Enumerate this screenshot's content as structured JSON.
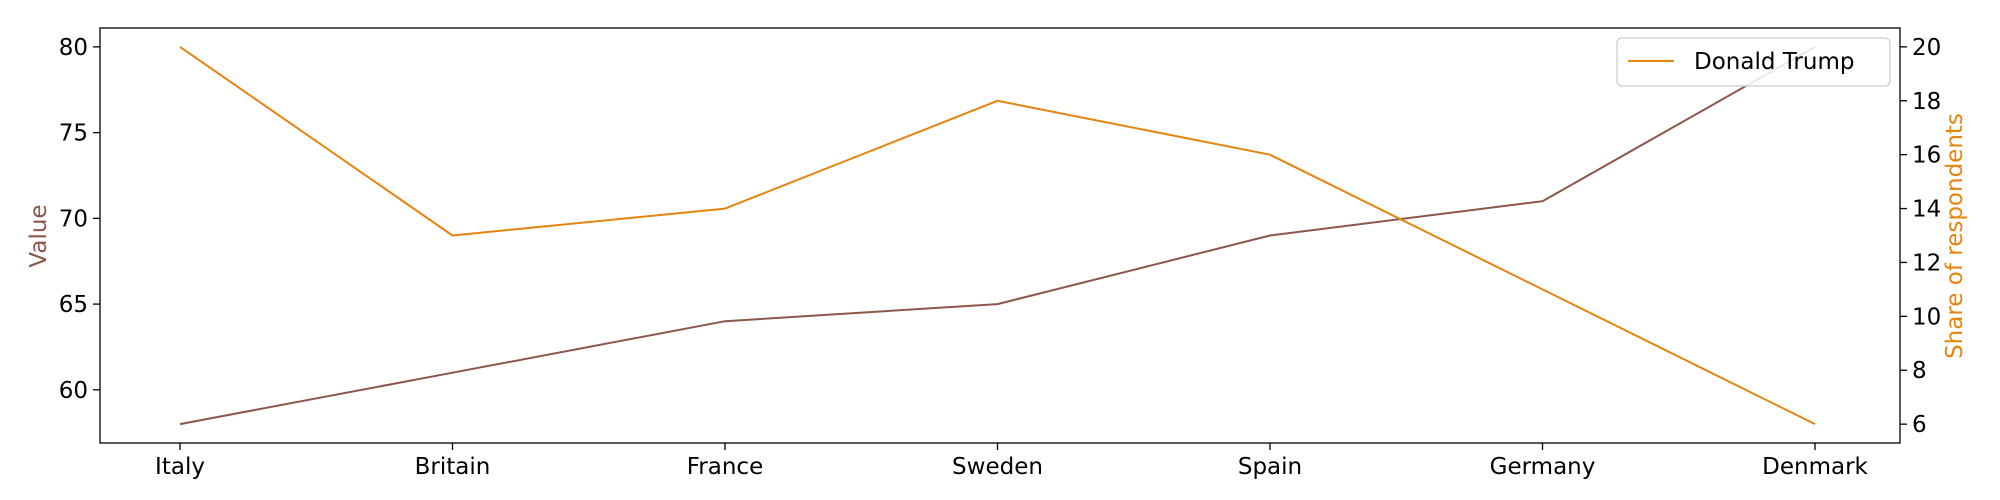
{
  "chart_data": {
    "type": "line",
    "categories": [
      "Italy",
      "Britain",
      "France",
      "Sweden",
      "Spain",
      "Germany",
      "Denmark"
    ],
    "series": [
      {
        "values": [
          58,
          61,
          64,
          65,
          69,
          71,
          80
        ],
        "axis": "left",
        "color": "#8c564b"
      },
      {
        "name": "Donald Trump",
        "values": [
          20,
          13,
          14,
          18,
          16,
          11,
          6
        ],
        "axis": "right",
        "color": "#e5840f"
      }
    ],
    "ylabel_left": "Value",
    "ylabel_right": "Share of respondents",
    "ylim_left": [
      56.9,
      81.1
    ],
    "ylim_right": [
      5.3,
      20.7
    ],
    "yticks_left": [
      60,
      65,
      70,
      75,
      80
    ],
    "yticks_right": [
      6,
      8,
      10,
      12,
      14,
      16,
      18,
      20
    ],
    "legend": {
      "placement": "top-right",
      "entries": [
        "Donald Trump"
      ]
    },
    "grid": false
  }
}
